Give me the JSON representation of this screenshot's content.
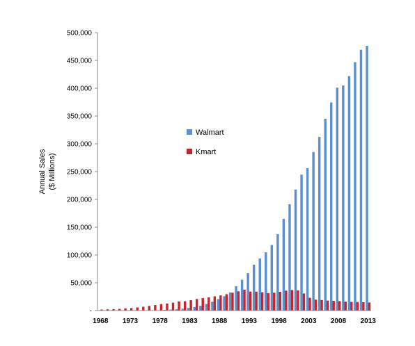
{
  "chart_data": {
    "type": "bar",
    "title": "",
    "xlabel": "",
    "ylabel": [
      "Annual Sales",
      "($ Millions)"
    ],
    "ylim": [
      0,
      500000
    ],
    "yticks": [
      0,
      50000,
      100000,
      150000,
      200000,
      250000,
      300000,
      350000,
      400000,
      450000,
      500000
    ],
    "ytick_labels": [
      "-",
      "50,000",
      "100,000",
      "150,000",
      "200,000",
      "250,000",
      "300,000",
      "350,000",
      "400,000",
      "450,000",
      "500,000"
    ],
    "x": [
      1968,
      1969,
      1970,
      1971,
      1972,
      1973,
      1974,
      1975,
      1976,
      1977,
      1978,
      1979,
      1980,
      1981,
      1982,
      1983,
      1984,
      1985,
      1986,
      1987,
      1988,
      1989,
      1990,
      1991,
      1992,
      1993,
      1994,
      1995,
      1996,
      1997,
      1998,
      1999,
      2000,
      2001,
      2002,
      2003,
      2004,
      2005,
      2006,
      2007,
      2008,
      2009,
      2010,
      2011,
      2012,
      2013
    ],
    "xtick_labels": [
      "1968",
      "1973",
      "1978",
      "1983",
      "1988",
      "1993",
      "1998",
      "2003",
      "2008",
      "2013"
    ],
    "grid": false,
    "legend_position": "center-left",
    "series": [
      {
        "name": "Walmart",
        "color": "#5b8fcf",
        "values": [
          12,
          21,
          31,
          44,
          78,
          125,
          168,
          236,
          340,
          478,
          678,
          1248,
          1643,
          2445,
          3376,
          4667,
          6400,
          8451,
          11909,
          15959,
          20649,
          25811,
          32602,
          43887,
          55484,
          67345,
          82494,
          93627,
          104859,
          117958,
          137634,
          165013,
          191329,
          217799,
          244524,
          256329,
          285222,
          312427,
          345000,
          374526,
          401087,
          405046,
          421849,
          446950,
          469162,
          476294
        ]
      },
      {
        "name": "Kmart",
        "color": "#cc2229",
        "values": [
          1800,
          2300,
          2600,
          3100,
          3800,
          4600,
          5600,
          6800,
          8400,
          9900,
          11700,
          12700,
          14200,
          16500,
          16800,
          18600,
          20800,
          22400,
          23800,
          25600,
          27300,
          29500,
          32100,
          34600,
          37700,
          34200,
          34000,
          33000,
          31400,
          32200,
          33700,
          35900,
          37000,
          36200,
          30800,
          23000,
          19700,
          19000,
          18000,
          17500,
          17000,
          16000,
          15600,
          15400,
          15000,
          14500
        ]
      }
    ]
  }
}
